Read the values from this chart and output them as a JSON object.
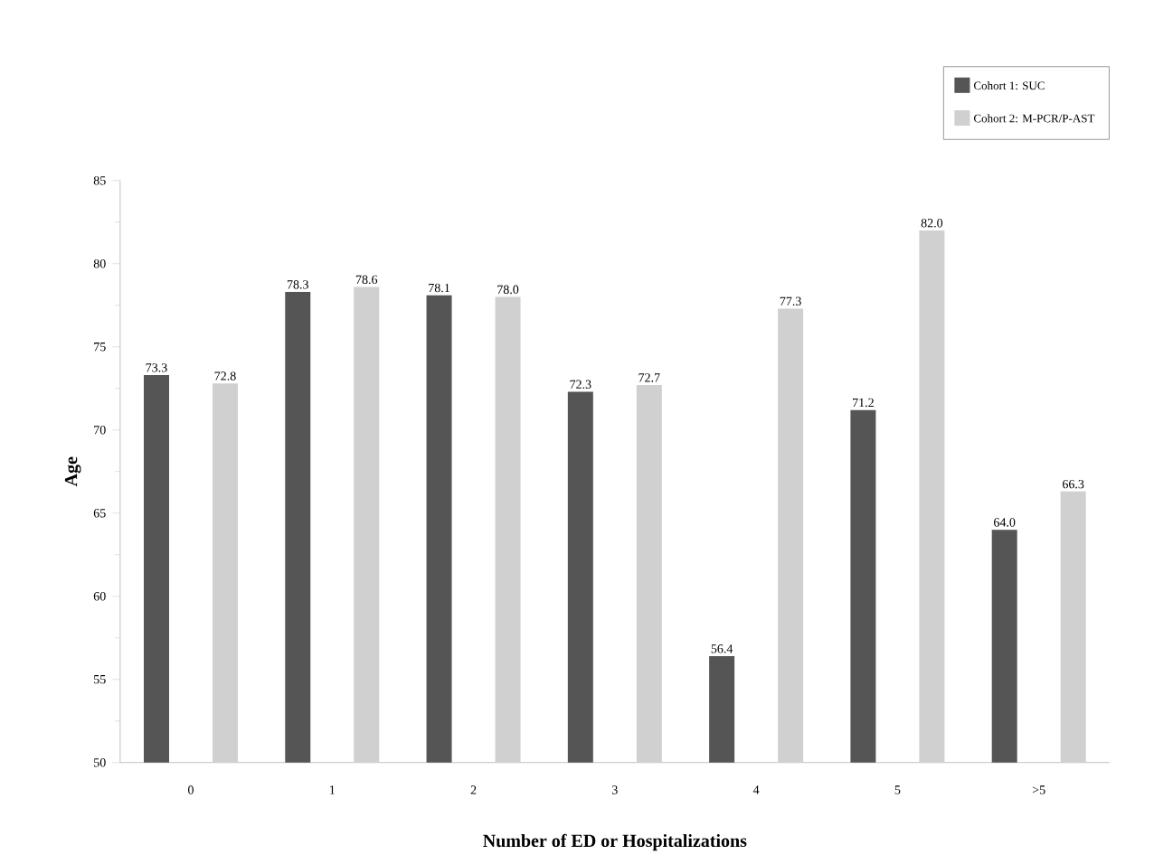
{
  "chart_data": {
    "type": "bar",
    "xlabel": "Number of ED or Hospitalizations",
    "ylabel": "Age",
    "categories": [
      "0",
      "1",
      "2",
      "3",
      "4",
      "5",
      ">5"
    ],
    "series": [
      {
        "name": "Cohort 1: SUC",
        "color": "#555555",
        "values": [
          73.3,
          78.3,
          78.1,
          72.3,
          56.4,
          71.2,
          64.0
        ],
        "value_labels": [
          "73.3",
          "78.3",
          "78.1",
          "72.3",
          "56.4",
          "71.2",
          "64.0"
        ]
      },
      {
        "name": "Cohort 2: M-PCR/P-AST",
        "color": "#d0d0d0",
        "values": [
          72.8,
          78.6,
          78.0,
          72.7,
          77.3,
          82.0,
          66.3
        ],
        "value_labels": [
          "72.8",
          "78.6",
          "78.0",
          "72.7",
          "77.3",
          "82.0",
          "66.3"
        ]
      }
    ],
    "ylim": [
      50,
      85
    ],
    "yticks": [
      50,
      55,
      60,
      65,
      70,
      75,
      80,
      85
    ],
    "legend": "top right",
    "grid": false
  }
}
